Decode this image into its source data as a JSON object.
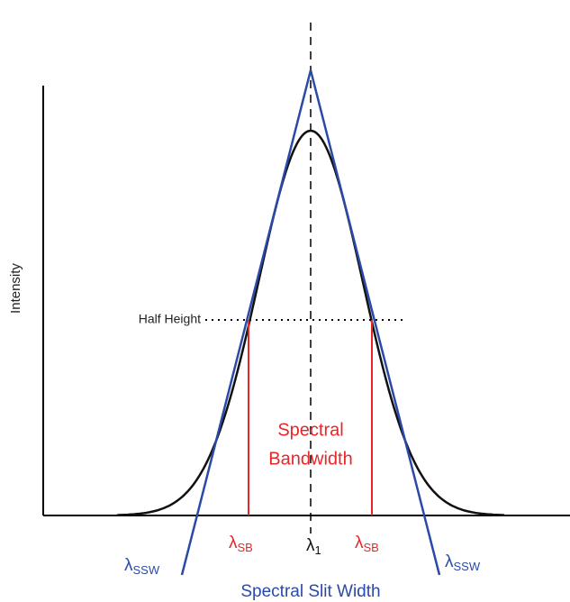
{
  "axis_label": "Intensity",
  "half_height_label": "Half Height",
  "spectral_bandwidth": {
    "line1": "Spectral",
    "line2": "Bandwidth"
  },
  "lambda_sb_left": {
    "symbol": "λ",
    "sub": "SB"
  },
  "lambda_sb_right": {
    "symbol": "λ",
    "sub": "SB"
  },
  "lambda_center": {
    "symbol": "λ",
    "sub": "1"
  },
  "lambda_ssw_left": {
    "symbol": "λ",
    "sub": "SSW"
  },
  "lambda_ssw_right": {
    "symbol": "λ",
    "sub": "SSW"
  },
  "spectral_slit_width": "Spectral Slit Width"
}
